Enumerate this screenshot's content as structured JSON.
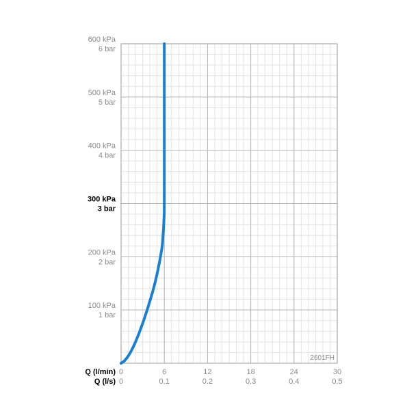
{
  "chart_data": {
    "type": "line",
    "title": "",
    "code_label": "2601FH",
    "x_axes": [
      {
        "label": "Q (l/min)",
        "ticks": [
          "0",
          "6",
          "12",
          "18",
          "24",
          "30"
        ]
      },
      {
        "label": "Q (l/s)",
        "ticks": [
          "0",
          "0.1",
          "0.2",
          "0.3",
          "0.4",
          "0.5"
        ]
      }
    ],
    "y_ticks": [
      {
        "value": 600,
        "kpa": "600 kPa",
        "bar": "6 bar",
        "bold": false
      },
      {
        "value": 500,
        "kpa": "500 kPa",
        "bar": "5 bar",
        "bold": false
      },
      {
        "value": 400,
        "kpa": "400 kPa",
        "bar": "4 bar",
        "bold": false
      },
      {
        "value": 300,
        "kpa": "300 kPa",
        "bar": "3 bar",
        "bold": true
      },
      {
        "value": 200,
        "kpa": "200 kPa",
        "bar": "2 bar",
        "bold": false
      },
      {
        "value": 100,
        "kpa": "100 kPa",
        "bar": "1 bar",
        "bold": false
      }
    ],
    "xlim": [
      0,
      30
    ],
    "ylim": [
      0,
      600
    ],
    "grid": true,
    "series": [
      {
        "color": "#1a7fd0",
        "x": [
          0,
          0.5,
          1.2,
          2.0,
          3.0,
          3.8,
          4.5,
          5.0,
          5.4,
          5.7,
          5.85,
          5.95,
          6.0,
          6.0,
          6.0
        ],
        "y": [
          0,
          5,
          18,
          40,
          75,
          108,
          140,
          168,
          195,
          220,
          245,
          270,
          300,
          450,
          600
        ]
      }
    ]
  }
}
